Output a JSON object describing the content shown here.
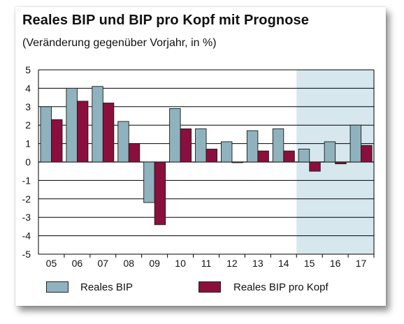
{
  "chart_data": {
    "type": "bar",
    "title": "Reales BIP und BIP pro Kopf mit Prognose",
    "subtitle": "(Veränderung gegenüber Vorjahr, in %)",
    "categories": [
      "05",
      "06",
      "07",
      "08",
      "09",
      "10",
      "11",
      "12",
      "13",
      "14",
      "15",
      "16",
      "17"
    ],
    "series": [
      {
        "name": "Reales BIP",
        "values": [
          3.0,
          4.0,
          4.1,
          2.2,
          -2.2,
          2.9,
          1.8,
          1.1,
          1.7,
          1.8,
          0.7,
          1.1,
          2.0
        ]
      },
      {
        "name": "Reales BIP pro Kopf",
        "values": [
          2.3,
          3.3,
          3.2,
          1.0,
          -3.4,
          1.8,
          0.7,
          0.0,
          0.6,
          0.6,
          -0.5,
          -0.1,
          0.9
        ]
      }
    ],
    "yticks": [
      "5",
      "4",
      "3",
      "2",
      "1",
      "0",
      "-1",
      "-2",
      "-3",
      "-4",
      "-5"
    ],
    "ylim": [
      -5,
      5
    ],
    "forecast_shading_from": "15",
    "grid": true,
    "legend_position": "bottom",
    "colors": {
      "Reales BIP": "#8fb3be",
      "Reales BIP pro Kopf": "#8b0f3c",
      "forecast_shade": "#d6e7ee"
    }
  }
}
